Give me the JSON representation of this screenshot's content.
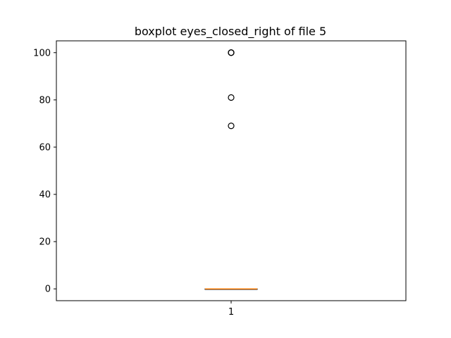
{
  "chart_data": {
    "type": "boxplot",
    "title": "boxplot eyes_closed_right of file 5",
    "xlabel": "",
    "ylabel": "",
    "categories": [
      "1"
    ],
    "boxes": [
      {
        "category": "1",
        "whisker_low": 0,
        "q1": 0,
        "median": 0,
        "q3": 0,
        "whisker_high": 0,
        "outliers": [
          69,
          81,
          100,
          100,
          100
        ]
      }
    ],
    "ylim": [
      -5,
      105
    ],
    "yticks": [
      0,
      20,
      40,
      60,
      80,
      100
    ],
    "grid": false,
    "colors": {
      "median": "#ff7f0e",
      "box": "#000000",
      "outlier": "#000000"
    }
  }
}
